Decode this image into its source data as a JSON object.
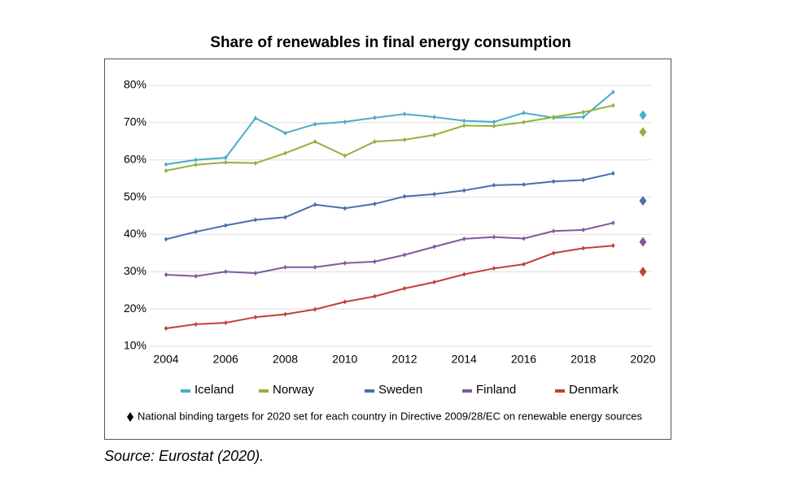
{
  "chart_data": {
    "type": "line",
    "title": "Share of renewables in final energy consumption",
    "x": [
      2004,
      2005,
      2006,
      2007,
      2008,
      2009,
      2010,
      2011,
      2012,
      2013,
      2014,
      2015,
      2016,
      2017,
      2018,
      2019
    ],
    "xlim": [
      2004,
      2020
    ],
    "xticks": [
      2004,
      2006,
      2008,
      2010,
      2012,
      2014,
      2016,
      2018,
      2020
    ],
    "ylim": [
      10,
      80
    ],
    "yticks": [
      {
        "value": 10,
        "label": "10%"
      },
      {
        "value": 20,
        "label": "20%"
      },
      {
        "value": 30,
        "label": "30%"
      },
      {
        "value": 40,
        "label": "40%"
      },
      {
        "value": 50,
        "label": "50%"
      },
      {
        "value": 60,
        "label": "60%"
      },
      {
        "value": 70,
        "label": "70%"
      },
      {
        "value": 80,
        "label": "80%"
      }
    ],
    "grid": true,
    "target_year": 2020,
    "series": [
      {
        "name": "Iceland",
        "color": "#4bacc6",
        "values": [
          58.8,
          60,
          60.6,
          71.2,
          67.2,
          69.6,
          70.2,
          71.3,
          72.3,
          71.5,
          70.5,
          70.2,
          72.6,
          71.3,
          71.5,
          78.2
        ],
        "target": 72
      },
      {
        "name": "Norway",
        "color": "#8fb33e",
        "values": [
          57.1,
          58.7,
          59.3,
          59.1,
          61.8,
          64.9,
          61.1,
          64.9,
          65.4,
          66.7,
          69.2,
          69.1,
          70.1,
          71.5,
          72.8,
          74.6
        ],
        "target": 67.5
      },
      {
        "name": "Sweden",
        "color": "#4a6fad",
        "values": [
          38.7,
          40.7,
          42.4,
          43.9,
          44.6,
          48.0,
          47.0,
          48.2,
          50.2,
          50.8,
          51.8,
          53.2,
          53.4,
          54.2,
          54.6,
          56.4
        ],
        "target": 49
      },
      {
        "name": "Finland",
        "color": "#7f5a9f",
        "values": [
          29.2,
          28.8,
          30.0,
          29.6,
          31.2,
          31.2,
          32.3,
          32.7,
          34.5,
          36.7,
          38.8,
          39.3,
          38.9,
          40.9,
          41.2,
          43.1
        ],
        "target": 38
      },
      {
        "name": "Denmark",
        "color": "#c0413b",
        "values": [
          14.8,
          15.9,
          16.3,
          17.8,
          18.6,
          19.9,
          21.9,
          23.4,
          25.5,
          27.2,
          29.3,
          30.9,
          32.0,
          35.0,
          36.3,
          37.0
        ],
        "target": 30
      }
    ],
    "note": "National binding targets for 2020 set for each country in Directive 2009/28/EC on renewable energy sources",
    "source": "Source: Eurostat (2020)."
  }
}
